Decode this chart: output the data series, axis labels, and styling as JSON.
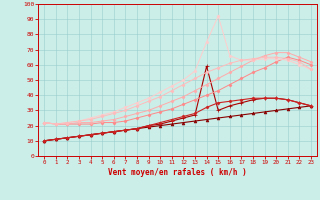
{
  "xlabel": "Vent moyen/en rafales ( km/h )",
  "xlim": [
    -0.5,
    23.5
  ],
  "ylim": [
    0,
    100
  ],
  "xticks": [
    0,
    1,
    2,
    3,
    4,
    5,
    6,
    7,
    8,
    9,
    10,
    11,
    12,
    13,
    14,
    15,
    16,
    17,
    18,
    19,
    20,
    21,
    22,
    23
  ],
  "yticks": [
    0,
    10,
    20,
    30,
    40,
    50,
    60,
    70,
    80,
    90,
    100
  ],
  "background_color": "#cceee8",
  "grid_color": "#99cccc",
  "series": [
    {
      "name": "s_linear",
      "x": [
        0,
        1,
        2,
        3,
        4,
        5,
        6,
        7,
        8,
        9,
        10,
        11,
        12,
        13,
        14,
        15,
        16,
        17,
        18,
        19,
        20,
        21,
        22,
        23
      ],
      "y": [
        10,
        11,
        12,
        13,
        14,
        15,
        16,
        17,
        18,
        19,
        20,
        21,
        22,
        23,
        24,
        25,
        26,
        27,
        28,
        29,
        30,
        31,
        32,
        33
      ],
      "color": "#880000",
      "lw": 0.8,
      "marker": "^",
      "ms": 2.0
    },
    {
      "name": "s_spike_small",
      "x": [
        0,
        1,
        2,
        3,
        4,
        5,
        6,
        7,
        8,
        9,
        10,
        11,
        12,
        13,
        14,
        15,
        16,
        17,
        18,
        19,
        20,
        21,
        22,
        23
      ],
      "y": [
        10,
        11,
        12,
        13,
        14,
        15,
        16,
        17,
        18,
        20,
        21,
        23,
        25,
        27,
        59,
        30,
        33,
        35,
        37,
        38,
        38,
        37,
        35,
        33
      ],
      "color": "#aa0000",
      "lw": 0.8,
      "marker": "+",
      "ms": 3.0
    },
    {
      "name": "s_flat_dark",
      "x": [
        0,
        1,
        2,
        3,
        4,
        5,
        6,
        7,
        8,
        9,
        10,
        11,
        12,
        13,
        14,
        15,
        16,
        17,
        18,
        19,
        20,
        21,
        22,
        23
      ],
      "y": [
        10,
        11,
        12,
        13,
        14,
        15,
        16,
        17,
        18,
        20,
        22,
        24,
        26,
        28,
        32,
        35,
        36,
        37,
        38,
        38,
        38,
        37,
        35,
        33
      ],
      "color": "#cc2222",
      "lw": 0.8,
      "marker": "D",
      "ms": 1.5
    },
    {
      "name": "s_wide1",
      "x": [
        0,
        1,
        2,
        3,
        4,
        5,
        6,
        7,
        8,
        9,
        10,
        11,
        12,
        13,
        14,
        15,
        16,
        17,
        18,
        19,
        20,
        21,
        22,
        23
      ],
      "y": [
        22,
        21,
        21,
        21,
        21,
        22,
        22,
        23,
        25,
        27,
        29,
        31,
        34,
        37,
        40,
        43,
        47,
        51,
        55,
        58,
        62,
        65,
        63,
        60
      ],
      "color": "#ff8888",
      "lw": 0.7,
      "marker": "D",
      "ms": 1.5
    },
    {
      "name": "s_wide2",
      "x": [
        0,
        1,
        2,
        3,
        4,
        5,
        6,
        7,
        8,
        9,
        10,
        11,
        12,
        13,
        14,
        15,
        16,
        17,
        18,
        19,
        20,
        21,
        22,
        23
      ],
      "y": [
        22,
        21,
        21,
        22,
        22,
        23,
        24,
        26,
        28,
        30,
        33,
        36,
        39,
        43,
        47,
        51,
        55,
        59,
        63,
        66,
        68,
        68,
        65,
        62
      ],
      "color": "#ffaaaa",
      "lw": 0.7,
      "marker": "D",
      "ms": 1.5
    },
    {
      "name": "s_spike_big",
      "x": [
        0,
        1,
        2,
        3,
        4,
        5,
        6,
        7,
        8,
        9,
        10,
        11,
        12,
        13,
        14,
        15,
        16,
        17,
        18,
        19,
        20,
        21,
        22,
        23
      ],
      "y": [
        22,
        21,
        22,
        23,
        25,
        27,
        29,
        32,
        35,
        38,
        42,
        46,
        50,
        56,
        75,
        92,
        66,
        63,
        63,
        64,
        64,
        63,
        60,
        57
      ],
      "color": "#ffcccc",
      "lw": 0.7,
      "marker": "D",
      "ms": 1.5
    },
    {
      "name": "s_wide3",
      "x": [
        0,
        1,
        2,
        3,
        4,
        5,
        6,
        7,
        8,
        9,
        10,
        11,
        12,
        13,
        14,
        15,
        16,
        17,
        18,
        19,
        20,
        21,
        22,
        23
      ],
      "y": [
        22,
        21,
        22,
        23,
        24,
        26,
        28,
        30,
        33,
        36,
        39,
        43,
        47,
        51,
        55,
        58,
        61,
        63,
        64,
        65,
        65,
        64,
        62,
        57
      ],
      "color": "#ffbbbb",
      "lw": 0.7,
      "marker": "D",
      "ms": 1.5
    }
  ]
}
